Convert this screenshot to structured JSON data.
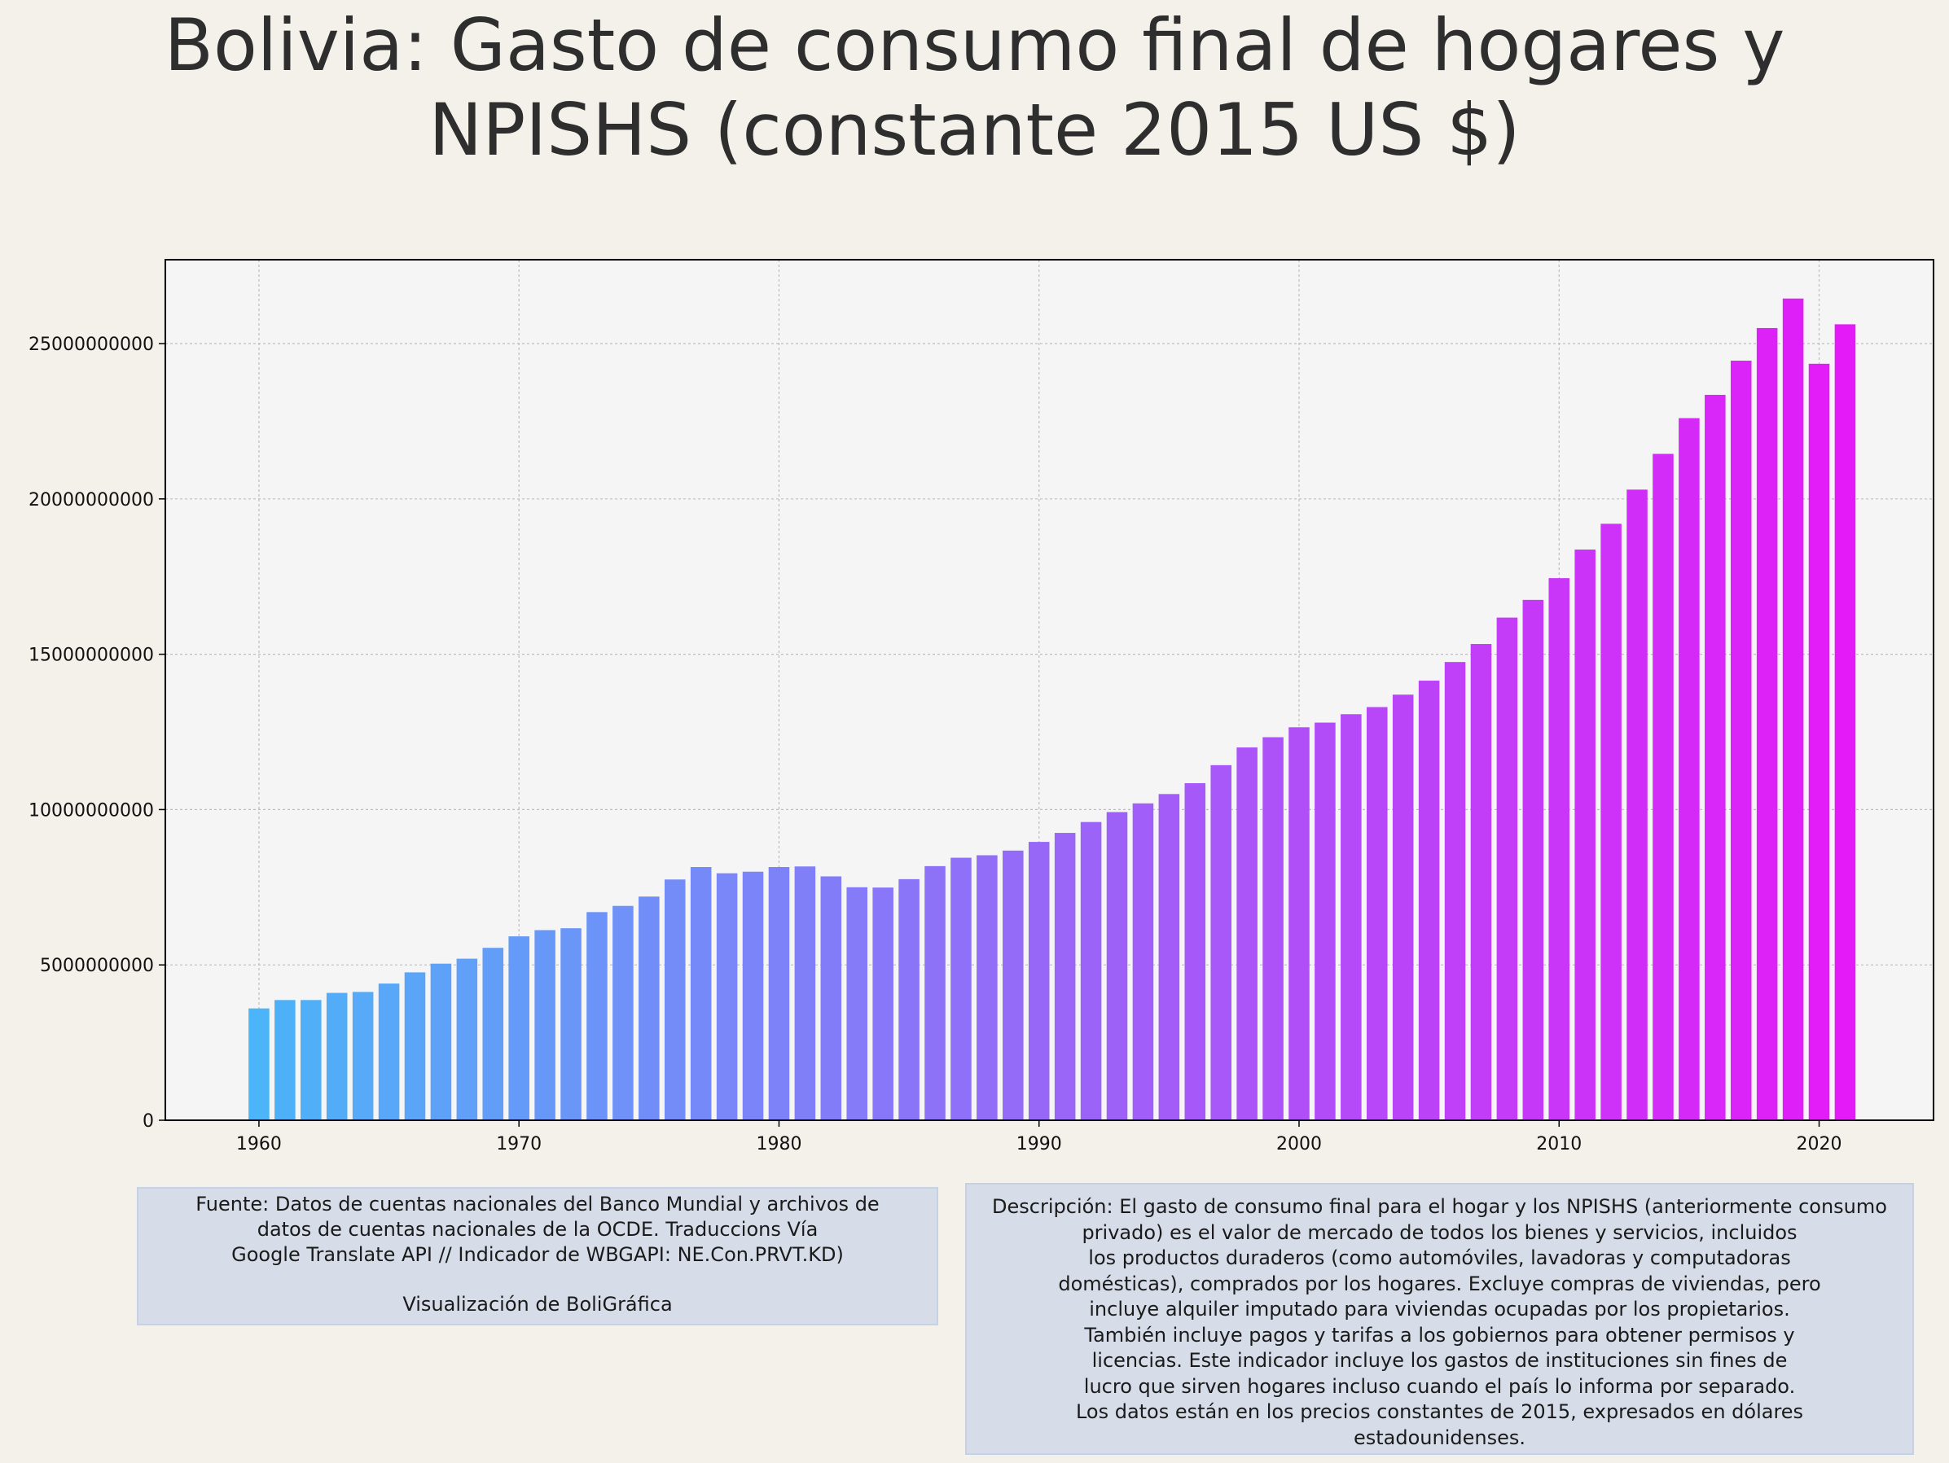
{
  "title_lines": [
    "Bolivia:  Gasto de consumo final de hogares y",
    "NPISHS (constante 2015 US $)"
  ],
  "chart_data": {
    "type": "bar",
    "title": "Bolivia:  Gasto de consumo final de hogares y NPISHS (constante 2015 US $)",
    "xlabel": "",
    "ylabel": "",
    "x": [
      1960,
      1961,
      1962,
      1963,
      1964,
      1965,
      1966,
      1967,
      1968,
      1969,
      1970,
      1971,
      1972,
      1973,
      1974,
      1975,
      1976,
      1977,
      1978,
      1979,
      1980,
      1981,
      1982,
      1983,
      1984,
      1985,
      1986,
      1987,
      1988,
      1989,
      1990,
      1991,
      1992,
      1993,
      1994,
      1995,
      1996,
      1997,
      1998,
      1999,
      2000,
      2001,
      2002,
      2003,
      2004,
      2005,
      2006,
      2007,
      2008,
      2009,
      2010,
      2011,
      2012,
      2013,
      2014,
      2015,
      2016,
      2017,
      2018,
      2019,
      2020,
      2021
    ],
    "values": [
      3600000000,
      3870000000,
      3870000000,
      4100000000,
      4130000000,
      4400000000,
      4760000000,
      5040000000,
      5200000000,
      5550000000,
      5920000000,
      6120000000,
      6180000000,
      6700000000,
      6900000000,
      7200000000,
      7750000000,
      8150000000,
      7950000000,
      8000000000,
      8150000000,
      8170000000,
      7850000000,
      7500000000,
      7490000000,
      7760000000,
      8180000000,
      8450000000,
      8530000000,
      8680000000,
      8960000000,
      9250000000,
      9600000000,
      9920000000,
      10200000000,
      10500000000,
      10850000000,
      11430000000,
      12000000000,
      12330000000,
      12650000000,
      12800000000,
      13070000000,
      13300000000,
      13700000000,
      14150000000,
      14750000000,
      15330000000,
      16180000000,
      16750000000,
      17450000000,
      18370000000,
      19200000000,
      20300000000,
      21450000000,
      22600000000,
      23350000000,
      24450000000,
      25500000000,
      26450000000,
      24350000000,
      25620000000
    ],
    "xticks": [
      1960,
      1970,
      1980,
      1990,
      2000,
      2010,
      2020
    ],
    "yticks": [
      0,
      5000000000,
      10000000000,
      15000000000,
      20000000000,
      25000000000
    ],
    "ytick_labels": [
      "0",
      "5000000000",
      "10000000000",
      "15000000000",
      "20000000000",
      "25000000000"
    ],
    "xlim": [
      1956.4,
      2024.4
    ],
    "ylim": [
      0,
      27700000000
    ],
    "grid": true,
    "colors": {
      "start": "#4cb4f8",
      "end": "#e41af8",
      "plot_bg": "#f5f5f5",
      "grid": "#bdbdbd"
    }
  },
  "source_lines": [
    "Fuente: Datos de cuentas nacionales del Banco Mundial y archivos de",
    "datos de cuentas nacionales de la OCDE. Traduccions Vía",
    "Google Translate API // Indicador de WBGAPI: NE.Con.PRVT.KD)"
  ],
  "credit": "Visualización de BoliGráfica",
  "description_lines": [
    "Descripción: El gasto de consumo final para el hogar y los NPISHS (anteriormente consumo",
    "privado) es el valor de mercado de todos los bienes y servicios, incluidos",
    "los productos duraderos (como automóviles, lavadoras y computadoras",
    "domésticas), comprados por los hogares. Excluye compras de viviendas, pero",
    "incluye alquiler imputado para viviendas ocupadas por los propietarios.",
    "También incluye pagos y tarifas a los gobiernos para obtener permisos y",
    "licencias. Este indicador incluye los gastos de instituciones sin fines de",
    "lucro que sirven hogares incluso cuando el país lo informa por separado.",
    "Los datos están en los precios constantes de 2015, expresados en dólares",
    "estadounidenses."
  ]
}
